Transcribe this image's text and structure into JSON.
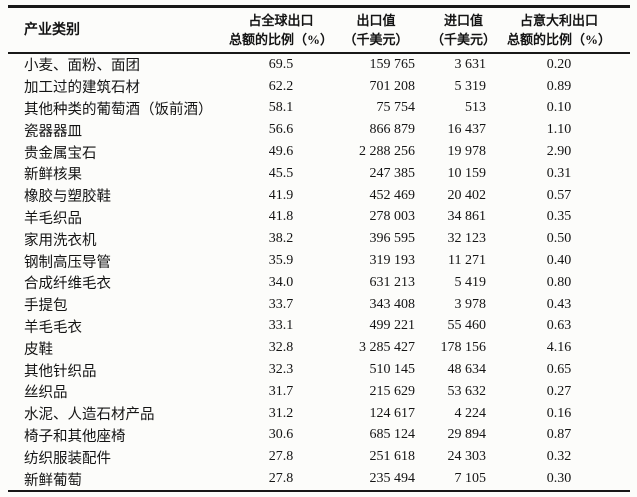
{
  "table": {
    "headers": {
      "category": "产业类别",
      "global_share": [
        "占全球出口",
        "总额的比例（%）"
      ],
      "export_value": [
        "出口值",
        "（千美元）"
      ],
      "import_value": [
        "进口值",
        "（千美元）"
      ],
      "italy_share": [
        "占意大利出口",
        "总额的比例（%）"
      ]
    },
    "rows": [
      {
        "category": "小麦、面粉、面团",
        "global_share": "69.5",
        "export_value": "159 765",
        "import_value": "3 631",
        "italy_share": "0.20"
      },
      {
        "category": "加工过的建筑石材",
        "global_share": "62.2",
        "export_value": "701 208",
        "import_value": "5 319",
        "italy_share": "0.89"
      },
      {
        "category": "其他种类的葡萄酒（饭前酒）",
        "global_share": "58.1",
        "export_value": "75 754",
        "import_value": "513",
        "italy_share": "0.10"
      },
      {
        "category": "瓷器器皿",
        "global_share": "56.6",
        "export_value": "866 879",
        "import_value": "16 437",
        "italy_share": "1.10"
      },
      {
        "category": "贵金属宝石",
        "global_share": "49.6",
        "export_value": "2 288 256",
        "import_value": "19 978",
        "italy_share": "2.90"
      },
      {
        "category": "新鲜核果",
        "global_share": "45.5",
        "export_value": "247 385",
        "import_value": "10 159",
        "italy_share": "0.31"
      },
      {
        "category": "橡胶与塑胶鞋",
        "global_share": "41.9",
        "export_value": "452 469",
        "import_value": "20 402",
        "italy_share": "0.57"
      },
      {
        "category": "羊毛织品",
        "global_share": "41.8",
        "export_value": "278 003",
        "import_value": "34 861",
        "italy_share": "0.35"
      },
      {
        "category": "家用洗衣机",
        "global_share": "38.2",
        "export_value": "396 595",
        "import_value": "32 123",
        "italy_share": "0.50"
      },
      {
        "category": "钢制高压导管",
        "global_share": "35.9",
        "export_value": "319 193",
        "import_value": "11 271",
        "italy_share": "0.40"
      },
      {
        "category": "合成纤维毛衣",
        "global_share": "34.0",
        "export_value": "631 213",
        "import_value": "5 419",
        "italy_share": "0.80"
      },
      {
        "category": "手提包",
        "global_share": "33.7",
        "export_value": "343 408",
        "import_value": "3 978",
        "italy_share": "0.43"
      },
      {
        "category": "羊毛毛衣",
        "global_share": "33.1",
        "export_value": "499 221",
        "import_value": "55 460",
        "italy_share": "0.63"
      },
      {
        "category": "皮鞋",
        "global_share": "32.8",
        "export_value": "3 285 427",
        "import_value": "178 156",
        "italy_share": "4.16"
      },
      {
        "category": "其他针织品",
        "global_share": "32.3",
        "export_value": "510 145",
        "import_value": "48 634",
        "italy_share": "0.65"
      },
      {
        "category": "丝织品",
        "global_share": "31.7",
        "export_value": "215 629",
        "import_value": "53 632",
        "italy_share": "0.27"
      },
      {
        "category": "水泥、人造石材产品",
        "global_share": "31.2",
        "export_value": "124 617",
        "import_value": "4 224",
        "italy_share": "0.16"
      },
      {
        "category": "椅子和其他座椅",
        "global_share": "30.6",
        "export_value": "685 124",
        "import_value": "29 894",
        "italy_share": "0.87"
      },
      {
        "category": "纺织服装配件",
        "global_share": "27.8",
        "export_value": "251 618",
        "import_value": "24 303",
        "italy_share": "0.32"
      },
      {
        "category": "新鲜葡萄",
        "global_share": "27.8",
        "export_value": "235 494",
        "import_value": "7 105",
        "italy_share": "0.30"
      }
    ]
  },
  "colors": {
    "text": "#141414",
    "border": "#181818",
    "paper": "#fcfcfa"
  }
}
